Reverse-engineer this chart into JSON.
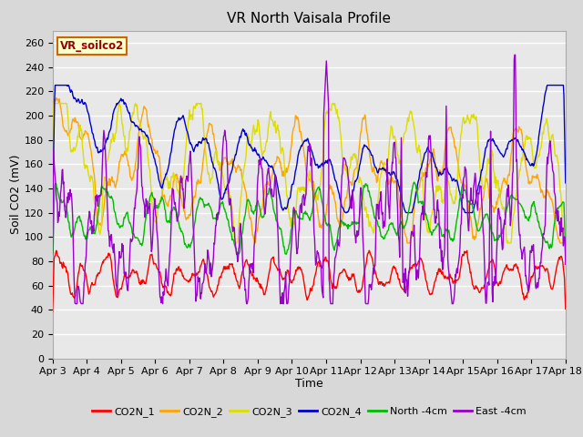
{
  "title": "VR North Vaisala Profile",
  "xlabel": "Time",
  "ylabel": "Soil CO2 (mV)",
  "legend_label": "VR_soilco2",
  "ylim": [
    0,
    270
  ],
  "yticks": [
    0,
    20,
    40,
    60,
    80,
    100,
    120,
    140,
    160,
    180,
    200,
    220,
    240,
    260
  ],
  "xtick_labels": [
    "Apr 3",
    "Apr 4",
    "Apr 5",
    "Apr 6",
    "Apr 7",
    "Apr 8",
    "Apr 9",
    "Apr 10",
    "Apr 11",
    "Apr 12",
    "Apr 13",
    "Apr 14",
    "Apr 15",
    "Apr 16",
    "Apr 17",
    "Apr 18"
  ],
  "series_colors": {
    "CO2N_1": "#ff0000",
    "CO2N_2": "#ffa500",
    "CO2N_3": "#dddd00",
    "CO2N_4": "#0000cc",
    "North_4cm": "#00bb00",
    "East_4cm": "#9900cc"
  },
  "legend_entries": [
    "CO2N_1",
    "CO2N_2",
    "CO2N_3",
    "CO2N_4",
    "North -4cm",
    "East -4cm"
  ],
  "bg_color": "#d8d8d8",
  "plot_bg_color": "#e8e8e8",
  "n_points": 960,
  "title_fontsize": 11,
  "axis_label_fontsize": 9,
  "tick_fontsize": 8
}
